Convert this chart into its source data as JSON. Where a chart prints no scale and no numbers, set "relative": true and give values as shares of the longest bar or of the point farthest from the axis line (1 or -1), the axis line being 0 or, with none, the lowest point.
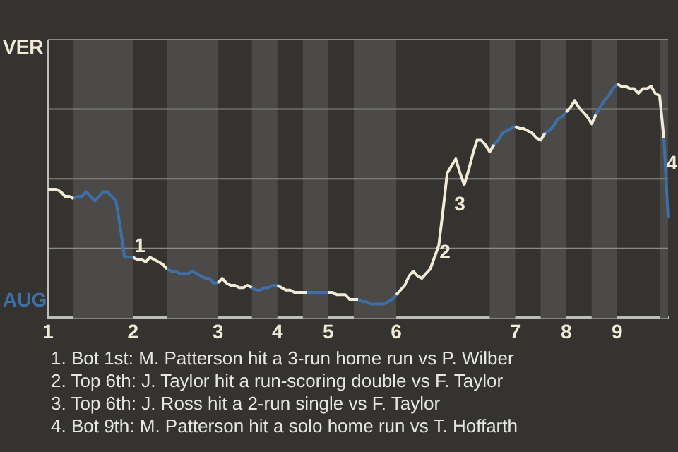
{
  "chart_data": {
    "type": "line",
    "relative": true,
    "grid": "y",
    "marker": "none",
    "categories": [
      "1",
      null,
      null,
      null,
      null,
      null,
      null,
      null,
      null,
      null,
      null,
      null,
      null,
      null,
      null,
      null,
      null,
      null,
      null,
      null,
      "2",
      null,
      null,
      null,
      null,
      null,
      null,
      null,
      null,
      null,
      null,
      null,
      null,
      null,
      null,
      null,
      null,
      null,
      null,
      null,
      "3",
      null,
      null,
      null,
      null,
      null,
      null,
      null,
      null,
      null,
      null,
      null,
      null,
      null,
      "4",
      null,
      null,
      null,
      null,
      null,
      null,
      null,
      null,
      null,
      null,
      null,
      "5",
      null,
      null,
      null,
      null,
      null,
      null,
      null,
      null,
      null,
      null,
      null,
      null,
      null,
      null,
      null,
      "6",
      null,
      null,
      null,
      null,
      null,
      null,
      null,
      null,
      null,
      null,
      null,
      null,
      null,
      null,
      null,
      null,
      null,
      null,
      null,
      null,
      null,
      null,
      null,
      null,
      null,
      null,
      null,
      "7",
      null,
      null,
      null,
      null,
      null,
      null,
      null,
      null,
      null,
      null,
      null,
      "8",
      null,
      null,
      null,
      null,
      null,
      null,
      null,
      null,
      null,
      null,
      null,
      "9",
      null,
      null,
      null,
      null,
      null,
      null,
      null,
      null,
      null,
      null,
      null,
      null
    ],
    "series": [
      {
        "color": "#f0ead6",
        "values": [
          0.55,
          0.55,
          0.55,
          0.54,
          0.52,
          0.52,
          0.51,
          null,
          null,
          null,
          null,
          null,
          null,
          null,
          null,
          null,
          null,
          null,
          null,
          null,
          0.26,
          0.25,
          0.25,
          0.24,
          0.26,
          0.25,
          0.24,
          0.23,
          0.21,
          null,
          null,
          null,
          null,
          null,
          null,
          null,
          null,
          null,
          null,
          null,
          0.15,
          0.17,
          0.15,
          0.14,
          0.14,
          0.13,
          0.13,
          0.14,
          0.13,
          null,
          null,
          null,
          null,
          null,
          0.14,
          0.13,
          0.12,
          0.12,
          0.11,
          0.11,
          0.11,
          0.11,
          null,
          null,
          null,
          null,
          0.11,
          0.11,
          0.1,
          0.1,
          0.1,
          0.08,
          0.08,
          0.08,
          null,
          null,
          null,
          null,
          null,
          null,
          null,
          null,
          0.1,
          0.12,
          0.14,
          0.18,
          0.2,
          0.18,
          0.17,
          0.19,
          0.21,
          0.26,
          0.31,
          0.46,
          0.62,
          0.65,
          0.68,
          0.62,
          0.57,
          0.63,
          0.7,
          0.76,
          0.76,
          0.74,
          0.71,
          0.74,
          null,
          null,
          null,
          null,
          0.82,
          0.81,
          0.81,
          0.8,
          0.79,
          0.77,
          0.76,
          0.79,
          null,
          null,
          null,
          null,
          0.88,
          0.9,
          0.93,
          0.9,
          0.88,
          0.86,
          0.83,
          0.87,
          null,
          null,
          null,
          null,
          1,
          0.99,
          0.99,
          0.98,
          0.98,
          0.96,
          0.98,
          0.98,
          0.99,
          0.96,
          0.95,
          0.77,
          null
        ]
      },
      {
        "color": "#3d6fa8",
        "values": [
          null,
          null,
          null,
          null,
          null,
          null,
          0.51,
          0.52,
          0.52,
          0.54,
          0.52,
          0.5,
          0.52,
          0.54,
          0.54,
          0.52,
          0.5,
          0.39,
          0.26,
          0.26,
          0.26,
          null,
          null,
          null,
          null,
          null,
          null,
          null,
          0.21,
          0.2,
          0.2,
          0.19,
          0.19,
          0.19,
          0.2,
          0.19,
          0.18,
          0.17,
          0.17,
          0.15,
          0.15,
          null,
          null,
          null,
          null,
          null,
          null,
          null,
          0.13,
          0.12,
          0.12,
          0.13,
          0.13,
          0.14,
          0.14,
          null,
          null,
          null,
          null,
          null,
          0.11,
          0.11,
          0.11,
          0.11,
          0.11,
          0.11,
          0.11,
          null,
          null,
          null,
          null,
          null,
          0.08,
          0.08,
          0.07,
          0.07,
          0.06,
          0.06,
          0.06,
          0.06,
          0.07,
          0.08,
          0.1,
          null,
          null,
          null,
          null,
          null,
          null,
          null,
          null,
          null,
          null,
          null,
          null,
          null,
          null,
          null,
          null,
          null,
          null,
          null,
          null,
          null,
          0.71,
          0.74,
          0.76,
          0.79,
          0.8,
          0.81,
          0.82,
          null,
          null,
          null,
          null,
          null,
          0.76,
          0.79,
          0.8,
          0.82,
          0.85,
          0.86,
          0.88,
          null,
          null,
          null,
          null,
          null,
          0.83,
          0.87,
          0.9,
          0.93,
          0.95,
          0.98,
          1,
          null,
          null,
          null,
          null,
          null,
          null,
          null,
          null,
          null,
          0.95,
          0.77,
          0.43
        ]
      }
    ],
    "annotations": [
      "1",
      "2",
      "3",
      "4",
      "VER",
      "AUG",
      "1. Bot 1st: M. Patterson hit a 3-run home run vs P. Wilber",
      "2. Top 6th: J. Taylor hit a run-scoring double vs F. Taylor",
      "3. Top 6th: J. Ross hit a 2-run single vs F. Taylor",
      "4. Bot 9th: M. Patterson hit a solo home run vs T. Hoffarth"
    ]
  }
}
